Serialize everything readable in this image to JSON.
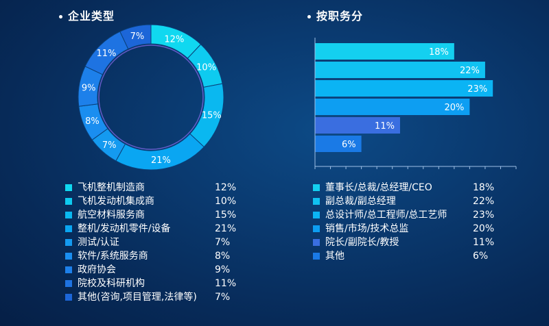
{
  "left": {
    "title": "企业类型",
    "legend": [
      {
        "label": "飞机整机制造商",
        "value": "12%",
        "color": "#10d8f0"
      },
      {
        "label": "飞机发动机集成商",
        "value": "10%",
        "color": "#0ecbf0"
      },
      {
        "label": "航空材料服务商",
        "value": "15%",
        "color": "#0ab8f0"
      },
      {
        "label": "整机/发动机零件/设备",
        "value": "21%",
        "color": "#0aa6f2"
      },
      {
        "label": "测试/认证",
        "value": "7%",
        "color": "#149af0"
      },
      {
        "label": "软件/系统服务商",
        "value": "8%",
        "color": "#1a8ef0"
      },
      {
        "label": "政府协会",
        "value": "9%",
        "color": "#1d80ea"
      },
      {
        "label": "院校及科研机构",
        "value": "11%",
        "color": "#1e73e2"
      },
      {
        "label": "其他(咨询,项目管理,法律等)",
        "value": "7%",
        "color": "#1c66d8"
      }
    ]
  },
  "right": {
    "title": "按职务分",
    "legend": [
      {
        "label": "董事长/总裁/总经理/CEO",
        "value": "18%",
        "color": "#14d0f0"
      },
      {
        "label": "副总裁/副总经理",
        "value": "22%",
        "color": "#10c2f2"
      },
      {
        "label": "总设计师/总工程师/总工艺师",
        "value": "23%",
        "color": "#0bb4f4"
      },
      {
        "label": "销售/市场/技术总监",
        "value": "20%",
        "color": "#0d9ef2"
      },
      {
        "label": "院长/副院长/教授",
        "value": "11%",
        "color": "#3a6ee0"
      },
      {
        "label": "其他",
        "value": "6%",
        "color": "#1a7ae6"
      }
    ]
  },
  "chart_data": [
    {
      "type": "pie",
      "categories": [
        "飞机整机制造商",
        "飞机发动机集成商",
        "航空材料服务商",
        "整机/发动机零件/设备",
        "测试/认证",
        "软件/系统服务商",
        "政府协会",
        "院校及科研机构",
        "其他(咨询,项目管理,法律等)"
      ],
      "values": [
        12,
        10,
        15,
        21,
        7,
        8,
        9,
        11,
        7
      ],
      "slice_labels": [
        "12%",
        "10%",
        "15%",
        "21%",
        "7%",
        "8%",
        "9%",
        "11%",
        "7%"
      ],
      "colors": [
        "#10d8f0",
        "#0ecbf0",
        "#0ab8f0",
        "#0aa6f2",
        "#149af0",
        "#1a8ef0",
        "#1d80ea",
        "#1e73e2",
        "#1c66d8"
      ],
      "title": "企业类型"
    },
    {
      "type": "bar",
      "orientation": "horizontal",
      "categories": [
        "董事长/总裁/总经理/CEO",
        "副总裁/副总经理",
        "总设计师/总工程师/总工艺师",
        "销售/市场/技术总监",
        "院长/副院长/教授",
        "其他"
      ],
      "values": [
        18,
        22,
        23,
        20,
        11,
        6
      ],
      "value_labels": [
        "18%",
        "22%",
        "23%",
        "20%",
        "11%",
        "6%"
      ],
      "colors": [
        "#14d0f0",
        "#10c2f2",
        "#0bb4f4",
        "#0d9ef2",
        "#3a6ee0",
        "#1a7ae6"
      ],
      "xlim": [
        0,
        26
      ],
      "title": "按职务分"
    }
  ]
}
